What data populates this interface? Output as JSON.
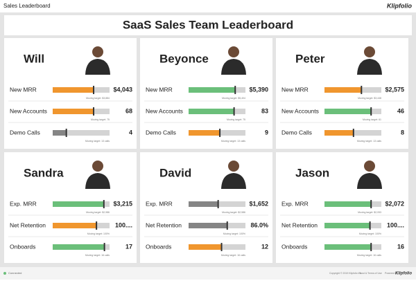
{
  "header": {
    "title": "Sales Leaderboard",
    "logo": "Klipfolio"
  },
  "dashboard_title": "SaaS Sales Team Leaderboard",
  "cards": [
    {
      "name": "Will",
      "metrics": [
        {
          "label": "New MRR",
          "value": "$4,043",
          "color": "#f0962e",
          "fill": 73,
          "target": 72,
          "target_label": "Moving target: $3,884"
        },
        {
          "label": "New Accounts",
          "value": "68",
          "color": "#f0962e",
          "fill": 73,
          "target": 72,
          "target_label": "Moving target: 75"
        },
        {
          "label": "Demo Calls",
          "value": "4",
          "color": "#858585",
          "fill": 24,
          "target": 24,
          "target_label": "Moving target: 13 calls"
        }
      ]
    },
    {
      "name": "Beyonce",
      "metrics": [
        {
          "label": "New MRR",
          "value": "$5,390",
          "color": "#6bbf7a",
          "fill": 82,
          "target": 82,
          "target_label": "Moving target: $5,404"
        },
        {
          "label": "New Accounts",
          "value": "83",
          "color": "#6bbf7a",
          "fill": 80,
          "target": 80,
          "target_label": "Moving target: 75"
        },
        {
          "label": "Demo Calls",
          "value": "9",
          "color": "#f0962e",
          "fill": 55,
          "target": 55,
          "target_label": "Moving target: 13 calls"
        }
      ]
    },
    {
      "name": "Peter",
      "metrics": [
        {
          "label": "New MRR",
          "value": "$2,575",
          "color": "#f0962e",
          "fill": 66,
          "target": 65,
          "target_label": "Moving target: $3,448"
        },
        {
          "label": "New Accounts",
          "value": "46",
          "color": "#6bbf7a",
          "fill": 82,
          "target": 82,
          "target_label": "Moving target: 61"
        },
        {
          "label": "Demo Calls",
          "value": "8",
          "color": "#f0962e",
          "fill": 51,
          "target": 51,
          "target_label": "Moving target: 13 calls"
        }
      ]
    },
    {
      "name": "Sandra",
      "metrics": [
        {
          "label": "Exp. MRR",
          "value": "$3,215",
          "color": "#6bbf7a",
          "fill": 90,
          "target": 90,
          "target_label": "Moving target: $2,986"
        },
        {
          "label": "Net Retention",
          "value": "100....",
          "color": "#f0962e",
          "fill": 77,
          "target": 77,
          "target_label": "Moving target: 100%"
        },
        {
          "label": "Onboards",
          "value": "17",
          "color": "#6bbf7a",
          "fill": 91,
          "target": 91,
          "target_label": "Moving target: 16 calls"
        }
      ]
    },
    {
      "name": "David",
      "metrics": [
        {
          "label": "Exp. MRR",
          "value": "$1,652",
          "color": "#858585",
          "fill": 52,
          "target": 52,
          "target_label": "Moving target: $2,586"
        },
        {
          "label": "Net Retention",
          "value": "86.0%",
          "color": "#858585",
          "fill": 68,
          "target": 68,
          "target_label": "Moving target: 100%"
        },
        {
          "label": "Onboards",
          "value": "12",
          "color": "#f0962e",
          "fill": 58,
          "target": 58,
          "target_label": "Moving target: 16 calls"
        }
      ]
    },
    {
      "name": "Jason",
      "metrics": [
        {
          "label": "Exp. MRR",
          "value": "$2,072",
          "color": "#6bbf7a",
          "fill": 82,
          "target": 82,
          "target_label": "Moving target: $2,053"
        },
        {
          "label": "Net Retention",
          "value": "100....",
          "color": "#6bbf7a",
          "fill": 80,
          "target": 80,
          "target_label": "Moving target: 100%"
        },
        {
          "label": "Onboards",
          "value": "16",
          "color": "#6bbf7a",
          "fill": 82,
          "target": 82,
          "target_label": "Moving target: 16 calls"
        }
      ]
    }
  ],
  "footer": {
    "status": "Connected",
    "copyright": "Copyright © 2019 Klipfolio Inc.",
    "terms": "Trust & Terms of Use",
    "powered": "Powered by",
    "logo": "Klipfolio"
  }
}
